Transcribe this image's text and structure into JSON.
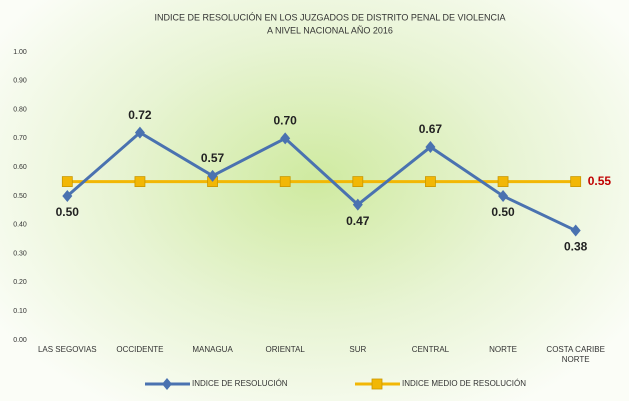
{
  "chart_data": {
    "type": "line",
    "title": [
      "INDICE DE RESOLUCIÓN EN LOS JUZGADOS DE DISTRITO PENAL DE VIOLENCIA",
      "A NIVEL NACIONAL AÑO 2016"
    ],
    "categories": [
      "LAS SEGOVIAS",
      "OCCIDENTE",
      "MANAGUA",
      "ORIENTAL",
      "SUR",
      "CENTRAL",
      "NORTE",
      "COSTA CARIBE NORTE"
    ],
    "series": [
      {
        "name": "INDICE DE RESOLUCIÓN",
        "color": "#4a72b0",
        "marker": "diamond",
        "values": [
          0.5,
          0.72,
          0.57,
          0.7,
          0.47,
          0.67,
          0.5,
          0.38
        ],
        "value_labels": [
          "0.50",
          "0.72",
          "0.57",
          "0.70",
          "0.47",
          "0.67",
          "0.50",
          "0.38"
        ]
      },
      {
        "name": "INDICE MEDIO DE RESOLUCIÓN",
        "color": "#f2b705",
        "marker": "square",
        "values": [
          0.55,
          0.55,
          0.55,
          0.55,
          0.55,
          0.55,
          0.55,
          0.55
        ],
        "value_labels": [
          null,
          null,
          null,
          null,
          null,
          null,
          null,
          "0.55"
        ]
      }
    ],
    "ylim": [
      0,
      1
    ],
    "yticks": [
      {
        "value": 0,
        "label": "0.00"
      },
      {
        "value": 0.1,
        "label": "0.10"
      },
      {
        "value": 0.2,
        "label": "0.20"
      },
      {
        "value": 0.3,
        "label": "0.30"
      },
      {
        "value": 0.4,
        "label": "0.40"
      },
      {
        "value": 0.5,
        "label": "0.50"
      },
      {
        "value": 0.6,
        "label": "0.60"
      },
      {
        "value": 0.7,
        "label": "0.70"
      },
      {
        "value": 0.8,
        "label": "0.80"
      },
      {
        "value": 0.9,
        "label": "0.90"
      },
      {
        "value": 1,
        "label": "1.00"
      }
    ],
    "legend": "bottom"
  }
}
